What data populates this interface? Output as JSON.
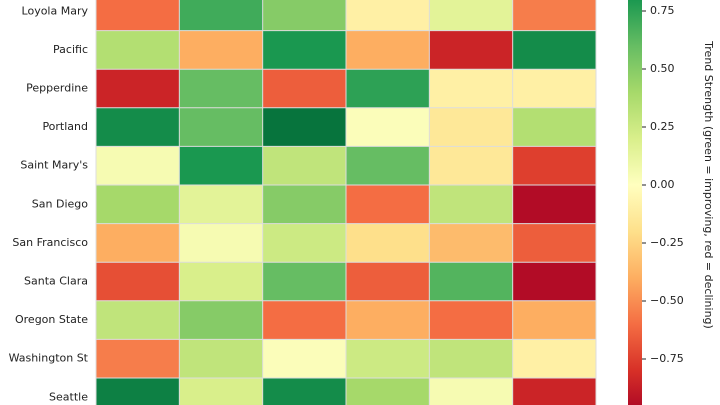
{
  "chart_data": {
    "type": "heatmap",
    "rows": [
      "Loyola Mary",
      "Pacific",
      "Pepperdine",
      "Portland",
      "Saint Mary's",
      "San Diego",
      "San Francisco",
      "Santa Clara",
      "Oregon State",
      "Washington St",
      "Seattle"
    ],
    "values": [
      [
        -0.6,
        0.7,
        0.5,
        -0.1,
        0.15,
        -0.55
      ],
      [
        0.35,
        -0.4,
        0.8,
        -0.4,
        -0.85,
        0.85
      ],
      [
        -0.85,
        0.6,
        -0.65,
        0.75,
        -0.1,
        -0.1
      ],
      [
        0.85,
        0.6,
        0.95,
        0.02,
        -0.15,
        0.35
      ],
      [
        0.05,
        0.8,
        0.3,
        0.6,
        -0.15,
        -0.75
      ],
      [
        0.4,
        0.15,
        0.5,
        -0.6,
        0.3,
        -0.95
      ],
      [
        -0.4,
        0.05,
        0.25,
        -0.2,
        -0.35,
        -0.65
      ],
      [
        -0.7,
        0.2,
        0.6,
        -0.65,
        0.65,
        -0.95
      ],
      [
        0.3,
        0.5,
        -0.6,
        -0.4,
        -0.6,
        -0.4
      ],
      [
        -0.55,
        0.3,
        0.02,
        0.25,
        0.3,
        -0.1
      ],
      [
        0.9,
        0.2,
        0.85,
        0.4,
        0.05,
        -0.85
      ]
    ],
    "colormap": "RdYlGn",
    "clim": [
      -1,
      1
    ],
    "colorbar_label": "Trend Strength (green = improving, red = declining)",
    "colorbar_ticks": [
      {
        "value": 0.75,
        "label": "0.75"
      },
      {
        "value": 0.5,
        "label": "0.50"
      },
      {
        "value": 0.25,
        "label": "0.25"
      },
      {
        "value": 0,
        "label": "0.00"
      },
      {
        "value": -0.25,
        "label": "−0.25"
      },
      {
        "value": -0.5,
        "label": "−0.50"
      },
      {
        "value": -0.75,
        "label": "−0.75"
      }
    ]
  }
}
